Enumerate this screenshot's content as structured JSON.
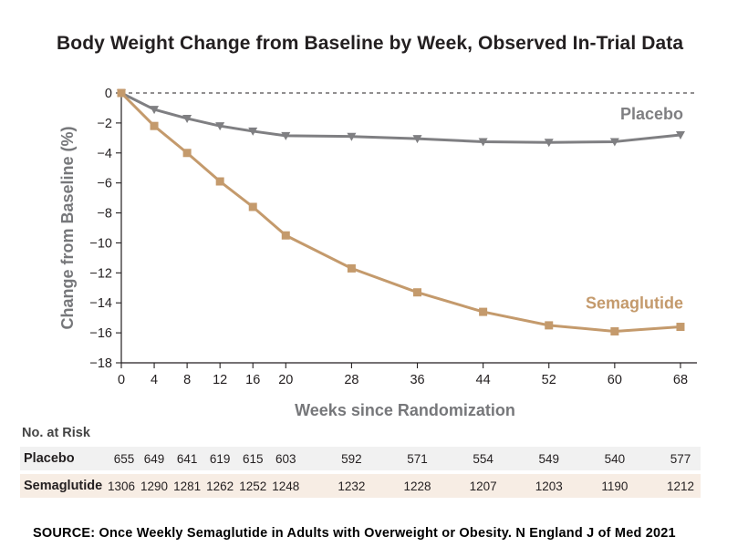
{
  "chart_data": {
    "type": "line",
    "title": "Body Weight Change from Baseline by Week, Observed In-Trial Data",
    "xlabel": "Weeks since Randomization",
    "ylabel": "Change from Baseline (%)",
    "x": [
      0,
      4,
      8,
      12,
      16,
      20,
      28,
      36,
      44,
      52,
      60,
      68
    ],
    "xticks": [
      "0",
      "4",
      "8",
      "12",
      "16",
      "20",
      "28",
      "36",
      "44",
      "52",
      "60",
      "68"
    ],
    "ylim": [
      -18,
      0
    ],
    "yticks": [
      "0",
      "−2",
      "−4",
      "−6",
      "−8",
      "−10",
      "−12",
      "−14",
      "−16",
      "−18"
    ],
    "reference_line": {
      "y": 0,
      "style": "dashed"
    },
    "series": [
      {
        "name": "Placebo",
        "color": "#7f7f82",
        "marker": "triangle-down",
        "values": [
          0,
          -1.1,
          -1.7,
          -2.2,
          -2.55,
          -2.85,
          -2.9,
          -3.05,
          -3.25,
          -3.3,
          -3.25,
          -2.8
        ]
      },
      {
        "name": "Semaglutide",
        "color": "#c49a6c",
        "marker": "square",
        "values": [
          0,
          -2.2,
          -4.0,
          -5.9,
          -7.6,
          -9.5,
          -11.7,
          -13.3,
          -14.6,
          -15.5,
          -15.9,
          -15.6
        ]
      }
    ]
  },
  "risk_table": {
    "header": "No. at Risk",
    "rows": [
      {
        "label": "Placebo",
        "values": [
          "655",
          "649",
          "641",
          "619",
          "615",
          "603",
          "592",
          "571",
          "554",
          "549",
          "540",
          "577"
        ]
      },
      {
        "label": "Semaglutide",
        "values": [
          "1306",
          "1290",
          "1281",
          "1262",
          "1252",
          "1248",
          "1232",
          "1228",
          "1207",
          "1203",
          "1190",
          "1212"
        ]
      }
    ]
  },
  "source": "SOURCE:  Once Weekly Semaglutide in Adults with Overweight or Obesity. N England J of Med 2021"
}
